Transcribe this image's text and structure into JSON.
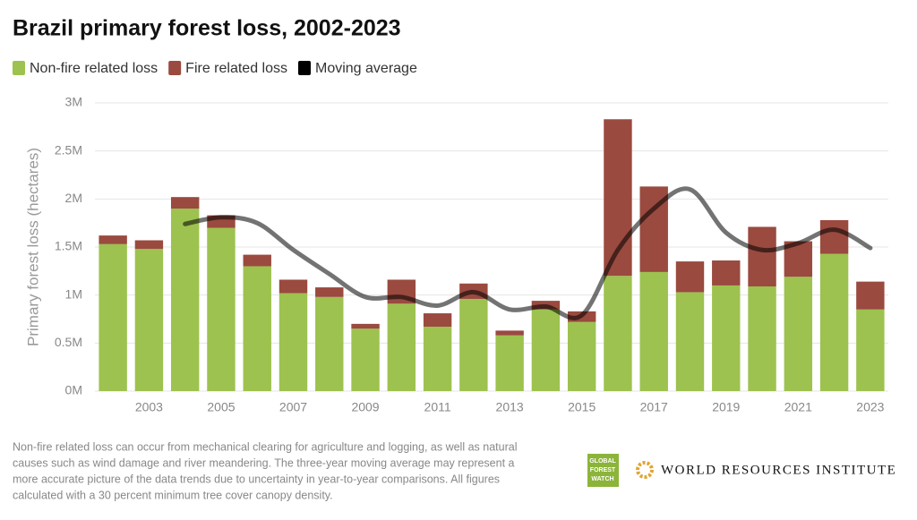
{
  "chart_data": {
    "type": "bar",
    "title": "Brazil primary forest loss, 2002-2023",
    "y_label": "Primary forest loss (hectares)",
    "categories": [
      null,
      "2003",
      null,
      "2005",
      null,
      "2007",
      null,
      "2009",
      null,
      "2011",
      null,
      "2013",
      null,
      "2015",
      null,
      "2017",
      null,
      "2019",
      null,
      "2021",
      null,
      "2023"
    ],
    "series": [
      {
        "name": "Non-fire related loss",
        "color": "#9dc24f",
        "values": [
          1530000,
          1480000,
          1900000,
          1700000,
          1300000,
          1020000,
          980000,
          650000,
          910000,
          670000,
          960000,
          580000,
          850000,
          720000,
          1200000,
          1240000,
          1030000,
          1100000,
          1090000,
          1190000,
          1430000,
          850000
        ]
      },
      {
        "name": "Fire related loss",
        "color": "#9a4a3f",
        "values": [
          90000,
          90000,
          120000,
          130000,
          120000,
          140000,
          100000,
          50000,
          250000,
          140000,
          160000,
          50000,
          90000,
          110000,
          1630000,
          890000,
          320000,
          260000,
          620000,
          370000,
          350000,
          290000
        ]
      },
      {
        "name": "Moving average",
        "color": "#000000",
        "line": true,
        "values": [
          null,
          null,
          1740000,
          1810000,
          1750000,
          1470000,
          1220000,
          980000,
          980000,
          890000,
          1030000,
          850000,
          880000,
          790000,
          1470000,
          1900000,
          2100000,
          1650000,
          1470000,
          1540000,
          1680000,
          1490000
        ]
      }
    ],
    "ylim": [
      0,
      3000000
    ],
    "yticks": [
      {
        "value": 0,
        "label": "0M"
      },
      {
        "value": 500000,
        "label": "0.5M"
      },
      {
        "value": 1000000,
        "label": "1M"
      },
      {
        "value": 1500000,
        "label": "1.5M"
      },
      {
        "value": 2000000,
        "label": "2M"
      },
      {
        "value": 2500000,
        "label": "2.5M"
      },
      {
        "value": 3000000,
        "label": "3M"
      }
    ],
    "grid": true
  },
  "footer": {
    "note_lines": [
      "Non-fire related loss can occur from mechanical clearing for agriculture and logging, as well as natural",
      "causes such as wind damage and river meandering. The three-year moving average may represent a",
      "more accurate picture of the data trends due to uncertainty in year-to-year comparisons. All figures",
      "calculated with a 30 percent minimum tree cover canopy density."
    ],
    "gfw_lines": [
      "GLOBAL",
      "FOREST",
      "WATCH"
    ],
    "wri": "WORLD RESOURCES INSTITUTE"
  }
}
